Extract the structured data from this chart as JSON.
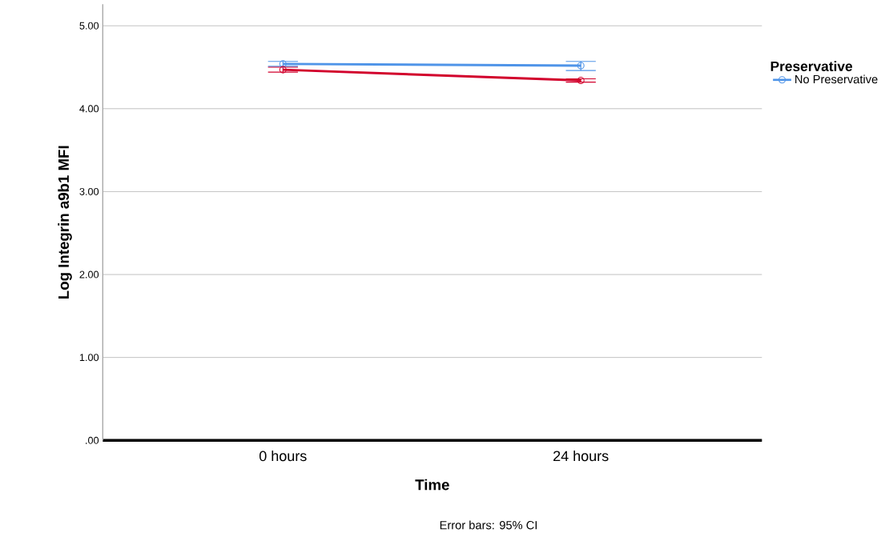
{
  "chart_data": {
    "type": "line",
    "xlabel": "Time",
    "ylabel": "Log Integrin a9b1 MFI",
    "legend_title": "Preservative",
    "categories": [
      "0 hours",
      "24 hours"
    ],
    "series": [
      {
        "name": "No Preservative",
        "color": "#4f94e8",
        "values": [
          4.54,
          4.52
        ],
        "errors": [
          [
            4.51,
            4.57
          ],
          [
            4.46,
            4.57
          ]
        ]
      },
      {
        "color": "#d2002c",
        "values": [
          4.47,
          4.34
        ],
        "errors": [
          [
            4.44,
            4.5
          ],
          [
            4.32,
            4.36
          ]
        ]
      }
    ],
    "ylim": [
      0,
      5.26
    ],
    "yticks": [
      {
        "value": 0,
        "label": ".00"
      },
      {
        "value": 1,
        "label": "1.00"
      },
      {
        "value": 2,
        "label": "2.00"
      },
      {
        "value": 3,
        "label": "3.00"
      },
      {
        "value": 4,
        "label": "4.00"
      },
      {
        "value": 5,
        "label": "5.00"
      }
    ],
    "grid": "y",
    "legend": "right",
    "marker": "circle",
    "line_style": "solid",
    "annotations": [
      "Error bars: 95% CI"
    ]
  }
}
